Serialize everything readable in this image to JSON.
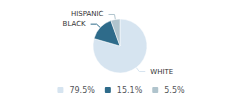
{
  "chart_data": {
    "type": "pie",
    "categories": [
      "WHITE",
      "BLACK",
      "HISPANIC"
    ],
    "values": [
      79.5,
      15.1,
      5.5
    ],
    "value_labels": [
      "79.5%",
      "15.1%",
      "5.5%"
    ],
    "colors": [
      "#d6e4f0",
      "#2e6b8a",
      "#b0c4cd"
    ],
    "legend": "bottom"
  }
}
